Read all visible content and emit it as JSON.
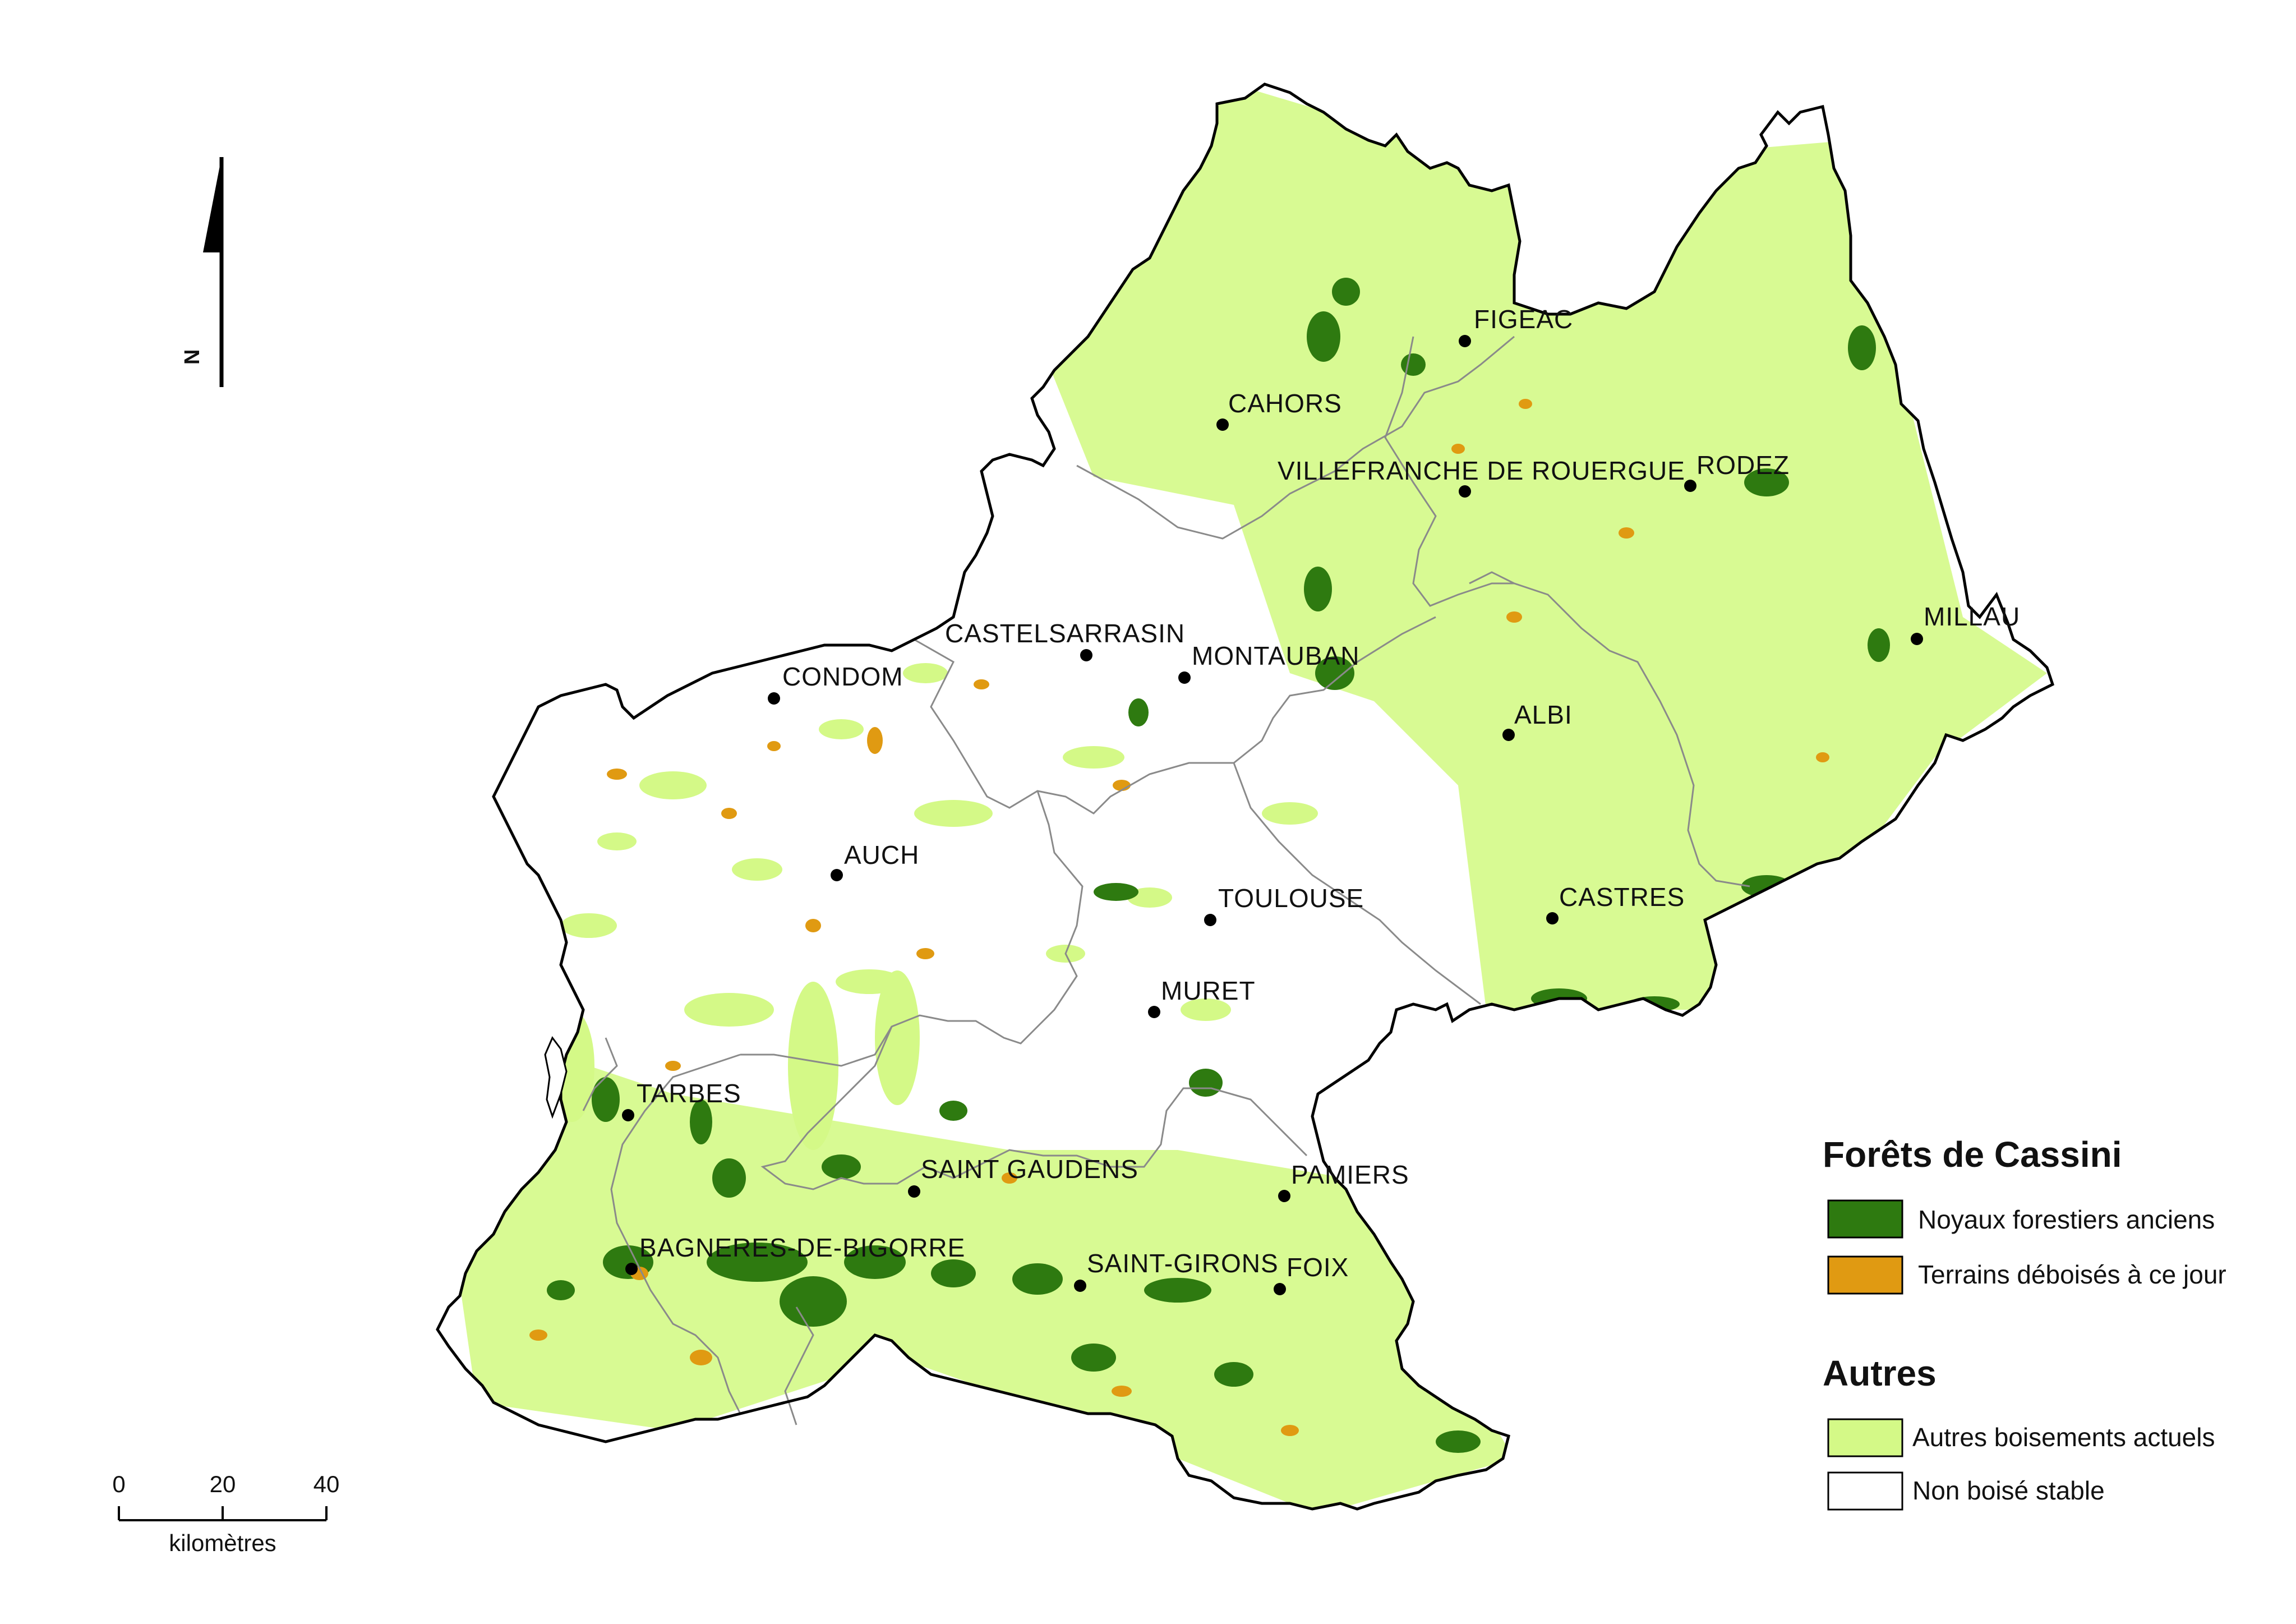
{
  "colors": {
    "outline": "#000000",
    "inner_borders": "#8a8a8a",
    "autres_boisements": "#d4f987",
    "noyaux": "#2e7a10",
    "deboises": "#e09a12",
    "background": "#ffffff"
  },
  "cities": [
    {
      "name": "FIGEAC"
    },
    {
      "name": "CAHORS"
    },
    {
      "name": "VILLEFRANCHE DE ROUERGUE"
    },
    {
      "name": "RODEZ"
    },
    {
      "name": "MILLAU"
    },
    {
      "name": "CASTELSARRASIN"
    },
    {
      "name": "MONTAUBAN"
    },
    {
      "name": "CONDOM"
    },
    {
      "name": "ALBI"
    },
    {
      "name": "AUCH"
    },
    {
      "name": "TOULOUSE"
    },
    {
      "name": "CASTRES"
    },
    {
      "name": "MURET"
    },
    {
      "name": "TARBES"
    },
    {
      "name": "SAINT GAUDENS"
    },
    {
      "name": "PAMIERS"
    },
    {
      "name": "BAGNERES-DE-BIGORRE"
    },
    {
      "name": "SAINT-GIRONS"
    },
    {
      "name": "FOIX"
    }
  ],
  "legend": {
    "title_cassini": "Forêts de Cassini",
    "noyaux_label": "Noyaux forestiers anciens",
    "deboises_label": "Terrains déboisés à ce jour",
    "title_autres": "Autres",
    "autres_boisements_label": "Autres boisements actuels",
    "non_boise_label": "Non boisé stable"
  },
  "north_arrow": {
    "letter": "N",
    "icon": "north-arrow-icon"
  },
  "scale_bar": {
    "ticks": [
      "0",
      "20",
      "40"
    ],
    "unit": "kilomètres"
  }
}
